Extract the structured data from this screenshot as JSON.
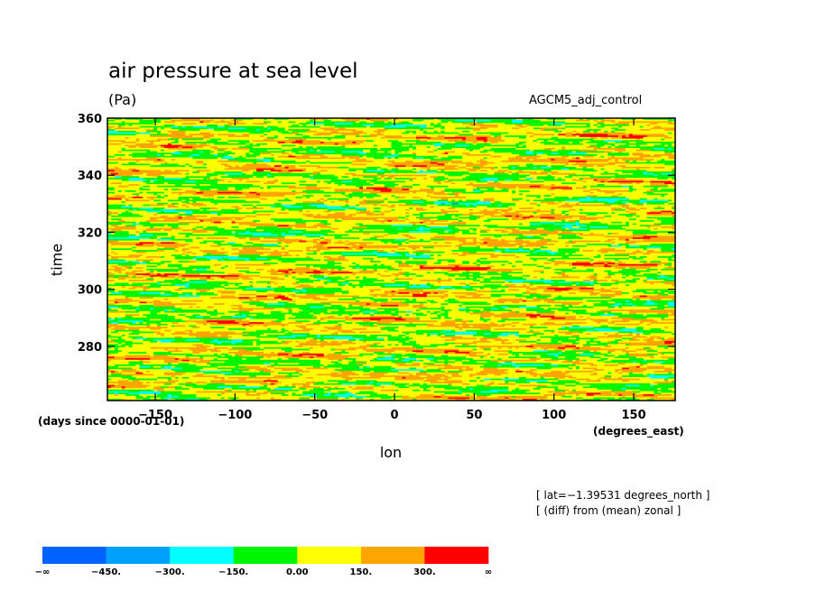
{
  "chart_data": {
    "type": "heatmap",
    "title": "air pressure at sea level",
    "units": "(Pa)",
    "dataset": "AGCM5_adj_control",
    "xlabel": "lon",
    "ylabel": "time",
    "x_units": "(degrees_east)",
    "y_units": "(days since 0000-01-01)",
    "xlim": [
      -180,
      176
    ],
    "ylim": [
      261,
      360
    ],
    "x_ticks": [
      -150,
      -100,
      -50,
      0,
      50,
      100,
      150
    ],
    "x_tick_labels": [
      "−150",
      "−100",
      "−50",
      "0",
      "50",
      "100",
      "150"
    ],
    "y_ticks": [
      280,
      300,
      320,
      340,
      360
    ],
    "y_tick_labels": [
      "280",
      "300",
      "320",
      "340",
      "360"
    ],
    "annotations": [
      "[ lat=−1.39531 degrees_north ]",
      "[ (diff) from (mean) zonal ]"
    ],
    "colorbar": {
      "levels": [
        -450,
        -300,
        -150,
        0,
        150,
        300
      ],
      "labels": [
        "−∞",
        "−450.",
        "−300.",
        "−150.",
        "0.00",
        "150.",
        "300.",
        "∞"
      ],
      "colors": [
        "#0062ff",
        "#00a0ff",
        "#00ffff",
        "#00f500",
        "#ffff00",
        "#ffa500",
        "#ff0000"
      ]
    },
    "grid": false,
    "legend": "bottom-left colorbar"
  }
}
